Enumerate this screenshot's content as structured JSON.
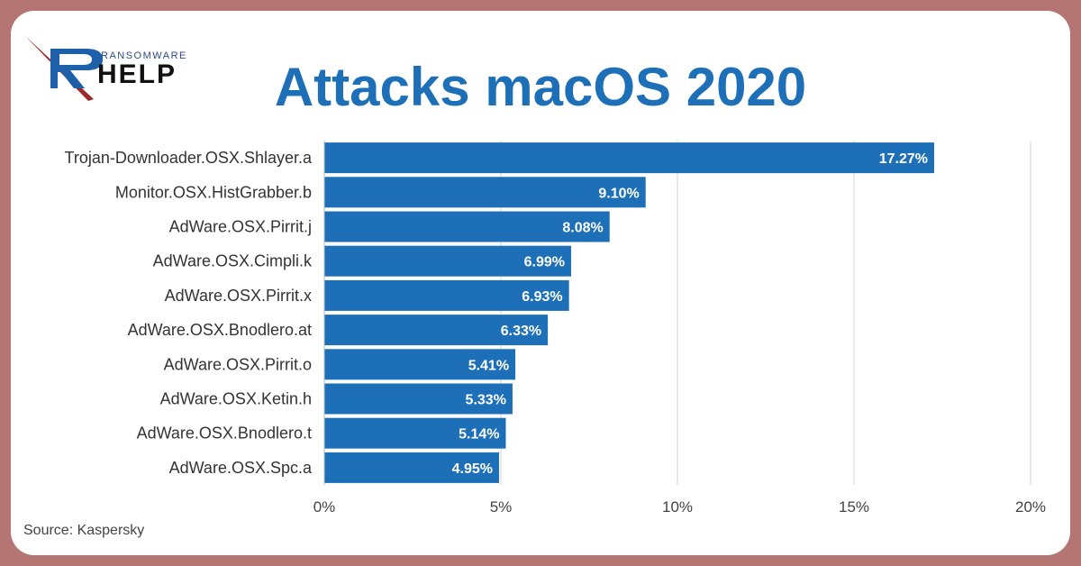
{
  "brand": {
    "small": "RANSOMWARE",
    "big": "HELP"
  },
  "title": "Attacks macOS 2020",
  "source": "Source: Kaspersky",
  "colors": {
    "bar": "#1d70b8",
    "title": "#1d70b8",
    "frame": "#b57673"
  },
  "chart_data": {
    "type": "bar",
    "orientation": "horizontal",
    "categories": [
      "Trojan-Downloader.OSX.Shlayer.a",
      "Monitor.OSX.HistGrabber.b",
      "AdWare.OSX.Pirrit.j",
      "AdWare.OSX.Cimpli.k",
      "AdWare.OSX.Pirrit.x",
      "AdWare.OSX.Bnodlero.at",
      "AdWare.OSX.Pirrit.o",
      "AdWare.OSX.Ketin.h",
      "AdWare.OSX.Bnodlero.t",
      "AdWare.OSX.Spc.a"
    ],
    "values": [
      17.27,
      9.1,
      8.08,
      6.99,
      6.93,
      6.33,
      5.41,
      5.33,
      5.14,
      4.95
    ],
    "value_labels": [
      "17.27%",
      "9.10%",
      "8.08%",
      "6.99%",
      "6.93%",
      "6.33%",
      "5.41%",
      "5.33%",
      "5.14%",
      "4.95%"
    ],
    "xlim": [
      0,
      20
    ],
    "xticks": [
      0,
      5,
      10,
      15,
      20
    ],
    "xtick_labels": [
      "0%",
      "5%",
      "10%",
      "15%",
      "20%"
    ],
    "grid": "vertical"
  }
}
